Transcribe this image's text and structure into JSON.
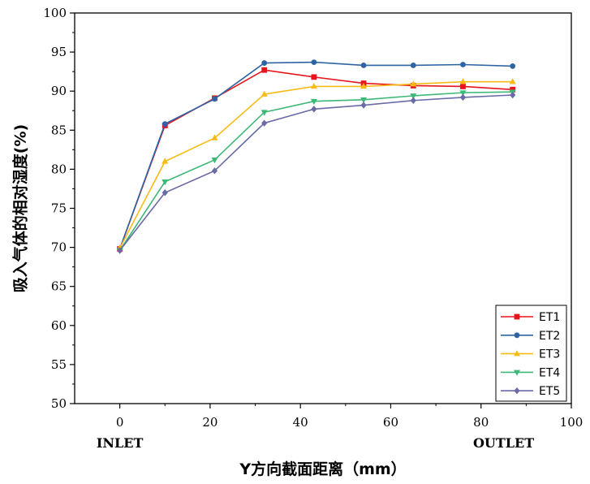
{
  "chart_data": {
    "type": "line",
    "title": "",
    "xlabel": "Y方向截面距离（mm）",
    "ylabel": "吸入气体的相对湿度(%)",
    "xlim": [
      -10,
      100
    ],
    "ylim": [
      50,
      100
    ],
    "xticks": [
      0,
      20,
      40,
      60,
      80,
      100
    ],
    "yticks": [
      50,
      55,
      60,
      65,
      70,
      75,
      80,
      85,
      90,
      95,
      100
    ],
    "annotations": [
      {
        "text": "INLET",
        "x": 0
      },
      {
        "text": "OUTLET",
        "x": 85
      }
    ],
    "x": [
      0,
      10,
      21,
      32,
      43,
      54,
      65,
      76,
      87
    ],
    "series": [
      {
        "name": "ET1",
        "color": "#e8141c",
        "marker": "square",
        "values": [
          69.8,
          85.6,
          89.1,
          92.7,
          91.8,
          91.0,
          90.7,
          90.6,
          90.2
        ]
      },
      {
        "name": "ET2",
        "color": "#2e64a4",
        "marker": "circle",
        "values": [
          69.8,
          85.8,
          89.0,
          93.6,
          93.7,
          93.3,
          93.3,
          93.4,
          93.2
        ]
      },
      {
        "name": "ET3",
        "color": "#f8bb16",
        "marker": "triangle-up",
        "values": [
          69.9,
          81.0,
          84.0,
          89.6,
          90.6,
          90.6,
          90.9,
          91.2,
          91.2
        ]
      },
      {
        "name": "ET4",
        "color": "#3cb877",
        "marker": "triangle-down",
        "values": [
          69.6,
          78.4,
          81.2,
          87.3,
          88.7,
          88.9,
          89.4,
          89.8,
          89.9
        ]
      },
      {
        "name": "ET5",
        "color": "#6a6aa6",
        "marker": "diamond",
        "values": [
          69.6,
          77.0,
          79.8,
          85.9,
          87.7,
          88.2,
          88.8,
          89.2,
          89.5
        ]
      }
    ],
    "legend_position": "bottom-right",
    "grid": false
  }
}
